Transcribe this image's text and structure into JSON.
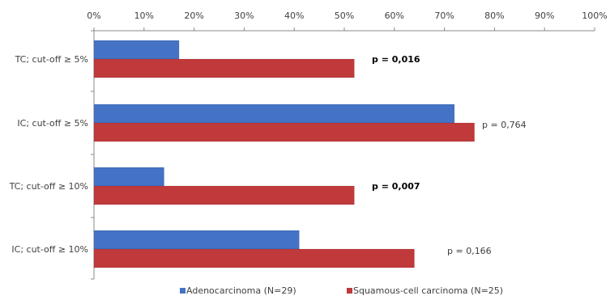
{
  "chart_data": {
    "type": "bar",
    "orientation": "horizontal",
    "x_axis_position": "top",
    "xlim": [
      0,
      100
    ],
    "x_tick_labels": [
      "0%",
      "10%",
      "20%",
      "30%",
      "40%",
      "50%",
      "60%",
      "70%",
      "80%",
      "90%",
      "100%"
    ],
    "categories": [
      "TC; cut-off ≥ 5%",
      "IC; cut-off ≥ 5%",
      "TC; cut-off ≥ 10%",
      "IC; cut-off ≥ 10%"
    ],
    "series": [
      {
        "name": "Adenocarcinoma (N=29)",
        "color": "#4472C4",
        "values": [
          17,
          72,
          14,
          41
        ]
      },
      {
        "name": "Squamous-cell carcinoma (N=25)",
        "color": "#C0393B",
        "values": [
          52,
          76,
          52,
          64
        ]
      }
    ],
    "annotations": [
      {
        "text": "p = 0,016",
        "bold": true
      },
      {
        "text": "p = 0,764",
        "bold": false
      },
      {
        "text": "p = 0,007",
        "bold": true
      },
      {
        "text": "p = 0,166",
        "bold": false
      }
    ],
    "grid": false,
    "legend_position": "bottom"
  }
}
